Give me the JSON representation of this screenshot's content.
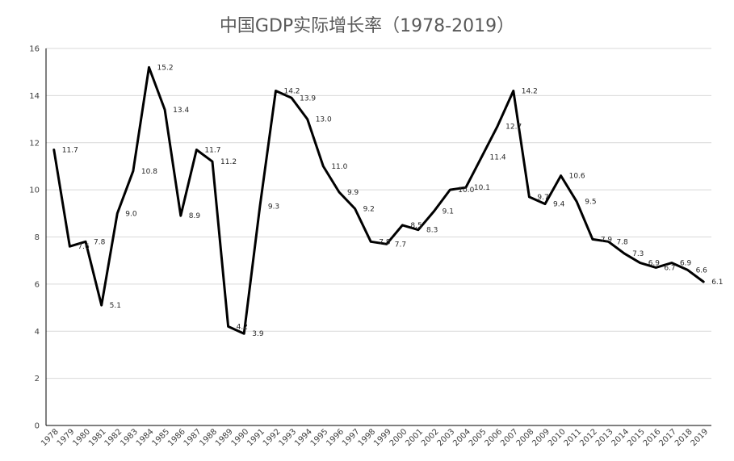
{
  "chart_data": {
    "type": "line",
    "title": "中国GDP实际增长率（1978-2019）",
    "xlabel": "",
    "ylabel": "",
    "ylim": [
      0,
      16
    ],
    "yticks": [
      0,
      2,
      4,
      6,
      8,
      10,
      12,
      14,
      16
    ],
    "grid": true,
    "categories": [
      "1978",
      "1979",
      "1980",
      "1981",
      "1982",
      "1983",
      "1984",
      "1985",
      "1986",
      "1987",
      "1988",
      "1989",
      "1990",
      "1991",
      "1992",
      "1993",
      "1994",
      "1995",
      "1996",
      "1997",
      "1998",
      "1999",
      "2000",
      "2001",
      "2002",
      "2003",
      "2004",
      "2005",
      "2006",
      "2007",
      "2008",
      "2009",
      "2010",
      "2011",
      "2012",
      "2013",
      "2014",
      "2015",
      "2016",
      "2017",
      "2018",
      "2019"
    ],
    "series": [
      {
        "name": "GDP实际增长率",
        "values": [
          11.7,
          7.6,
          7.8,
          5.1,
          9.0,
          10.8,
          15.2,
          13.4,
          8.9,
          11.7,
          11.2,
          4.2,
          3.9,
          9.3,
          14.2,
          13.9,
          13.0,
          11.0,
          9.9,
          9.2,
          7.8,
          7.7,
          8.5,
          8.3,
          9.1,
          10.0,
          10.1,
          11.4,
          12.7,
          14.2,
          9.7,
          9.4,
          10.6,
          9.5,
          7.9,
          7.8,
          7.3,
          6.9,
          6.7,
          6.9,
          6.6,
          6.1
        ],
        "labels": [
          "11.7",
          "7.6",
          "7.8",
          "5.1",
          "9.0",
          "10.8",
          "15.2",
          "13.4",
          "8.9",
          "11.7",
          "11.2",
          "4.2",
          "3.9",
          "9.3",
          "14.2",
          "13.9",
          "13.0",
          "11.0",
          "9.9",
          "9.2",
          "7.8",
          "7.7",
          "8.5",
          "8.3",
          "9.1",
          "10.0",
          "10.1",
          "11.4",
          "12.7",
          "14.2",
          "9.7",
          "9.4",
          "10.6",
          "9.5",
          "7.9",
          "7.8",
          "7.3",
          "6.9",
          "6.7",
          "6.9",
          "6.6",
          "6.1"
        ]
      }
    ]
  }
}
